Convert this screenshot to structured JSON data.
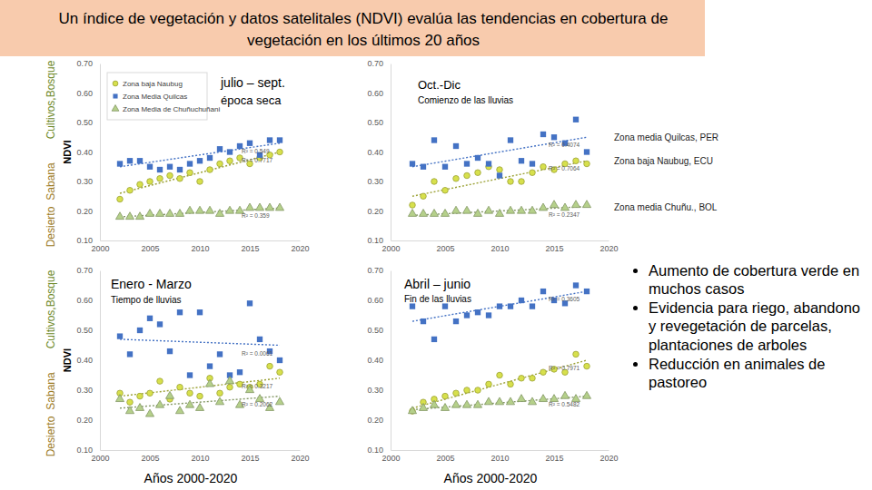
{
  "title": "Un índice de vegetación y datos satelitales (NDVI) evalúa las tendencias en cobertura de vegetación en los últimos 20 años",
  "bullets": [
    "Aumento de cobertura verde en muchos casos",
    "Evidencia para riego, abandono y revegetación de parcelas, plantaciones de arboles",
    "Reducción en animales de pastoreo"
  ],
  "chart_data": [
    {
      "type": "scatter",
      "title": "julio – sept.",
      "subtitle": "época seca",
      "ylabel": "NDVI",
      "zone_labels": [
        "Desierto",
        "Sabana",
        "Cultivos,Bosque"
      ],
      "legend": "upper left",
      "x": [
        2002,
        2003,
        2004,
        2005,
        2006,
        2007,
        2008,
        2009,
        2010,
        2011,
        2012,
        2013,
        2014,
        2015,
        2016,
        2017,
        2018
      ],
      "xlim": [
        2000,
        2020
      ],
      "xticks": [
        2000,
        2005,
        2010,
        2015,
        2020
      ],
      "ylim": [
        0.1,
        0.7
      ],
      "yticks": [
        {
          "value": 0.1,
          "label": "0.10"
        },
        {
          "value": 0.2,
          "label": "0.20"
        },
        {
          "value": 0.3,
          "label": "0.30"
        },
        {
          "value": 0.4,
          "label": "0.40"
        },
        {
          "value": 0.5,
          "label": "0.50"
        },
        {
          "value": 0.6,
          "label": "0.60"
        },
        {
          "value": 0.7,
          "label": "0.70"
        }
      ],
      "series": [
        {
          "name": "Zona baja Naubug",
          "color": "#d7e04c",
          "marker": "circle",
          "values": [
            0.24,
            0.27,
            0.29,
            0.3,
            0.31,
            0.32,
            0.31,
            0.33,
            0.3,
            0.34,
            0.36,
            0.37,
            0.38,
            0.36,
            0.38,
            0.39,
            0.4
          ],
          "trend_x": [
            2002,
            2018
          ],
          "trend_values": [
            0.26,
            0.4
          ],
          "trend_label": "R² = 0.7717"
        },
        {
          "name": "Zona Media Quilcas",
          "color": "#4472c4",
          "marker": "square",
          "values": [
            0.36,
            0.37,
            0.37,
            0.35,
            0.34,
            0.35,
            0.34,
            0.36,
            0.37,
            0.38,
            0.41,
            0.4,
            0.42,
            0.43,
            0.39,
            0.44,
            0.44
          ],
          "trend_x": [
            2002,
            2018
          ],
          "trend_values": [
            0.35,
            0.43
          ],
          "trend_label": "R² = 0.549"
        },
        {
          "name": "Zona Media de Chuñuchuñani",
          "color": "#b5d08a",
          "marker": "triangle",
          "values": [
            0.18,
            0.18,
            0.18,
            0.19,
            0.19,
            0.19,
            0.19,
            0.2,
            0.2,
            0.2,
            0.19,
            0.2,
            0.2,
            0.21,
            0.21,
            0.21,
            0.21
          ],
          "trend_x": [
            2002,
            2018
          ],
          "trend_values": [
            0.18,
            0.21
          ],
          "trend_label": "R² = 0.359"
        }
      ]
    },
    {
      "type": "scatter",
      "title": "Oct.-Dic",
      "subtitle": "Comienzo de las lluvias",
      "x": [
        2002,
        2003,
        2004,
        2005,
        2006,
        2007,
        2008,
        2009,
        2010,
        2011,
        2012,
        2013,
        2014,
        2015,
        2016,
        2017,
        2018
      ],
      "xlim": [
        2000,
        2020
      ],
      "xticks": [
        2000,
        2005,
        2010,
        2015,
        2020
      ],
      "ylim": [
        0.1,
        0.7
      ],
      "yticks": [
        {
          "value": 0.1,
          "label": "0.10"
        },
        {
          "value": 0.2,
          "label": "0.20"
        },
        {
          "value": 0.3,
          "label": "0.30"
        },
        {
          "value": 0.4,
          "label": "0.40"
        },
        {
          "value": 0.5,
          "label": "0.50"
        },
        {
          "value": 0.6,
          "label": "0.60"
        },
        {
          "value": 0.7,
          "label": "0.70"
        }
      ],
      "series": [
        {
          "label": "Zona baja Naubug, ECU",
          "color": "#d7e04c",
          "marker": "circle",
          "values": [
            0.22,
            0.25,
            0.3,
            0.27,
            0.31,
            0.32,
            0.33,
            0.35,
            0.34,
            0.3,
            0.3,
            0.33,
            0.35,
            0.34,
            0.36,
            0.37,
            0.36
          ],
          "trend_x": [
            2002,
            2018
          ],
          "trend_values": [
            0.25,
            0.37
          ],
          "trend_label": "R² = 0.7064"
        },
        {
          "label": "Zona media Quilcas, PER",
          "color": "#4472c4",
          "marker": "square",
          "values": [
            0.36,
            0.35,
            0.44,
            0.35,
            0.42,
            0.36,
            0.38,
            0.36,
            0.32,
            0.44,
            0.37,
            0.36,
            0.46,
            0.45,
            0.43,
            0.51,
            0.4
          ],
          "trend_x": [
            2002,
            2018
          ],
          "trend_values": [
            0.35,
            0.45
          ],
          "trend_label": "R² = 0.4074"
        },
        {
          "label": "Zona media Chuñu., BOL",
          "color": "#b5d08a",
          "marker": "triangle",
          "values": [
            0.19,
            0.19,
            0.19,
            0.19,
            0.2,
            0.2,
            0.19,
            0.2,
            0.19,
            0.2,
            0.2,
            0.2,
            0.21,
            0.22,
            0.21,
            0.22,
            0.22
          ],
          "trend_x": [
            2002,
            2018
          ],
          "trend_values": [
            0.185,
            0.215
          ],
          "trend_label": "R² = 0.2347"
        }
      ]
    },
    {
      "type": "scatter",
      "title": "Enero - Marzo",
      "subtitle": "Tiempo de lluvias",
      "ylabel": "NDVI",
      "xlabel": "Años 2000-2020",
      "zone_labels": [
        "Desierto",
        "Sabana",
        "Cultivos,Bosque"
      ],
      "x": [
        2002,
        2003,
        2004,
        2005,
        2006,
        2007,
        2008,
        2009,
        2010,
        2011,
        2012,
        2013,
        2014,
        2015,
        2016,
        2017,
        2018
      ],
      "xlim": [
        2000,
        2020
      ],
      "xticks": [
        2000,
        2005,
        2010,
        2015,
        2020
      ],
      "ylim": [
        0.1,
        0.7
      ],
      "yticks": [
        {
          "value": 0.1,
          "label": "0.10"
        },
        {
          "value": 0.2,
          "label": "0.20"
        },
        {
          "value": 0.3,
          "label": "0.30"
        },
        {
          "value": 0.4,
          "label": "0.40"
        },
        {
          "value": 0.5,
          "label": "0.50"
        },
        {
          "value": 0.6,
          "label": "0.60"
        },
        {
          "value": 0.7,
          "label": "0.70"
        }
      ],
      "series": [
        {
          "color": "#d7e04c",
          "marker": "circle",
          "values": [
            0.29,
            0.26,
            0.28,
            0.29,
            0.33,
            0.27,
            0.31,
            0.29,
            0.28,
            0.34,
            0.29,
            0.31,
            0.32,
            0.31,
            0.32,
            0.38,
            0.36
          ],
          "trend_x": [
            2002,
            2018
          ],
          "trend_values": [
            0.28,
            0.34
          ],
          "trend_label": "R² = 0.3217"
        },
        {
          "color": "#4472c4",
          "marker": "square",
          "values": [
            0.48,
            0.42,
            0.5,
            0.54,
            0.52,
            0.43,
            0.56,
            0.35,
            0.56,
            0.38,
            0.42,
            0.35,
            0.36,
            0.59,
            0.47,
            0.43,
            0.4
          ],
          "trend_x": [
            2002,
            2018
          ],
          "trend_values": [
            0.47,
            0.45
          ],
          "trend_label": "R² = 0.0061"
        },
        {
          "color": "#b5d08a",
          "marker": "triangle",
          "values": [
            0.27,
            0.23,
            0.24,
            0.22,
            0.25,
            0.28,
            0.23,
            0.25,
            0.24,
            0.32,
            0.26,
            0.33,
            0.25,
            0.3,
            0.27,
            0.24,
            0.26
          ],
          "trend_x": [
            2002,
            2018
          ],
          "trend_values": [
            0.24,
            0.28
          ],
          "trend_label": "R² = 0.2062"
        }
      ]
    },
    {
      "type": "scatter",
      "title": "Abril – junio",
      "subtitle": "Fin de las lluvias",
      "xlabel": "Años 2000-2020",
      "x": [
        2002,
        2003,
        2004,
        2005,
        2006,
        2007,
        2008,
        2009,
        2010,
        2011,
        2012,
        2013,
        2014,
        2015,
        2016,
        2017,
        2018
      ],
      "xlim": [
        2000,
        2020
      ],
      "xticks": [
        2000,
        2005,
        2010,
        2015,
        2020
      ],
      "ylim": [
        0.1,
        0.7
      ],
      "yticks": [
        {
          "value": 0.1,
          "label": "0.10"
        },
        {
          "value": 0.2,
          "label": "0.20"
        },
        {
          "value": 0.3,
          "label": "0.30"
        },
        {
          "value": 0.4,
          "label": "0.40"
        },
        {
          "value": 0.5,
          "label": "0.50"
        },
        {
          "value": 0.6,
          "label": "0.60"
        },
        {
          "value": 0.7,
          "label": "0.70"
        }
      ],
      "series": [
        {
          "color": "#d7e04c",
          "marker": "circle",
          "values": [
            0.23,
            0.26,
            0.27,
            0.28,
            0.29,
            0.3,
            0.3,
            0.32,
            0.35,
            0.32,
            0.34,
            0.34,
            0.36,
            0.37,
            0.36,
            0.42,
            0.38
          ],
          "trend_x": [
            2002,
            2018
          ],
          "trend_values": [
            0.24,
            0.4
          ],
          "trend_label": "R² = 0.7971"
        },
        {
          "color": "#4472c4",
          "marker": "square",
          "values": [
            0.58,
            0.53,
            0.47,
            0.58,
            0.53,
            0.55,
            0.56,
            0.55,
            0.58,
            0.58,
            0.6,
            0.58,
            0.63,
            0.6,
            0.59,
            0.65,
            0.63
          ],
          "trend_x": [
            2002,
            2018
          ],
          "trend_values": [
            0.53,
            0.63
          ],
          "trend_label": "R² = 0.3605"
        },
        {
          "color": "#b5d08a",
          "marker": "triangle",
          "values": [
            0.23,
            0.24,
            0.25,
            0.24,
            0.25,
            0.25,
            0.25,
            0.26,
            0.26,
            0.26,
            0.27,
            0.26,
            0.27,
            0.27,
            0.28,
            0.27,
            0.28
          ],
          "trend_x": [
            2002,
            2018
          ],
          "trend_values": [
            0.235,
            0.28
          ],
          "trend_label": "R² = 0.5482"
        }
      ]
    }
  ]
}
